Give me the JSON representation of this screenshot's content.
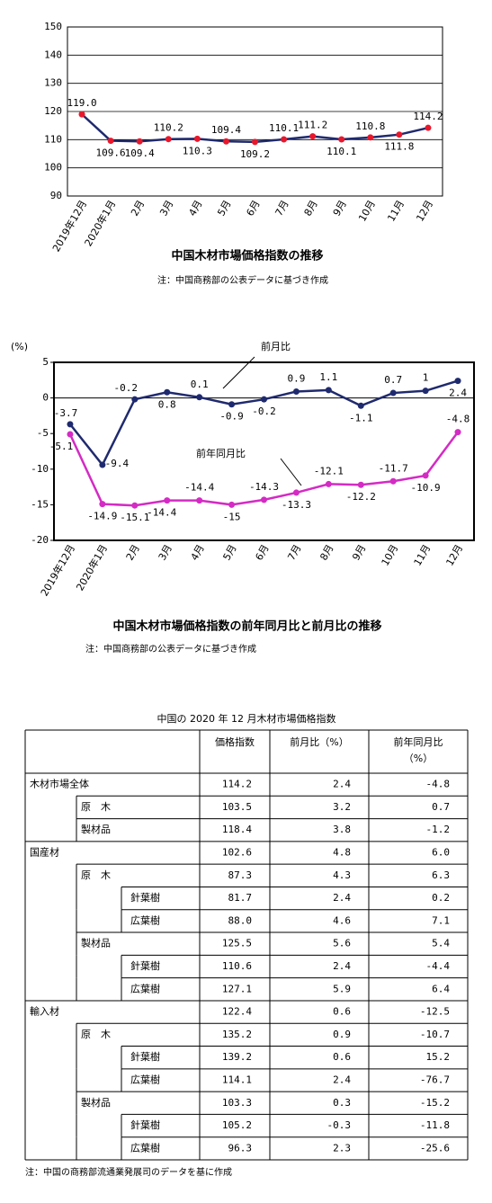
{
  "chart_data": [
    {
      "type": "line",
      "title": "中国木材市場価格指数の推移",
      "note": "注：中国商務部の公表データに基づき作成",
      "categories": [
        "2019年12月",
        "2020年1月",
        "2月",
        "3月",
        "4月",
        "5月",
        "6月",
        "7月",
        "8月",
        "9月",
        "10月",
        "11月",
        "12月"
      ],
      "series": [
        {
          "color": "#1f2a6e",
          "marker_color": "#e8182c",
          "values": [
            119.0,
            109.6,
            109.4,
            110.2,
            110.3,
            109.4,
            109.2,
            110.1,
            111.2,
            110.1,
            110.8,
            111.8,
            114.2
          ],
          "value_labels": [
            "119.0",
            "109.6",
            "109.4",
            "110.2",
            "110.3",
            "109.4",
            "109.2",
            "110.1",
            "111.2",
            "110.1",
            "110.8",
            "111.8",
            "114.2"
          ]
        }
      ],
      "ylim": [
        90,
        150
      ],
      "yticks": [
        90,
        100,
        110,
        120,
        130,
        140,
        150
      ],
      "grid": true
    },
    {
      "type": "line",
      "title": "中国木材市場価格指数の前年同月比と前月比の推移",
      "note": "注：中国商務部の公表データに基づき作成",
      "y_label": "(%)",
      "categories": [
        "2019年12月",
        "2020年1月",
        "2月",
        "3月",
        "4月",
        "5月",
        "6月",
        "7月",
        "8月",
        "9月",
        "10月",
        "11月",
        "12月"
      ],
      "series": [
        {
          "name": "前月比",
          "color": "#1f2a6e",
          "marker_color": "#1f2a6e",
          "values": [
            -3.7,
            -9.4,
            -0.2,
            0.8,
            0.1,
            -0.9,
            -0.2,
            0.9,
            1.1,
            -1.1,
            0.7,
            1,
            2.4
          ]
        },
        {
          "name": "前年同月比",
          "color": "#d42bc4",
          "marker_color": "#d42bc4",
          "values": [
            -5.1,
            -14.9,
            -15.1,
            -14.4,
            -14.4,
            -15,
            -14.3,
            -13.3,
            -12.1,
            -12.2,
            -11.7,
            -10.9,
            -4.8
          ]
        }
      ],
      "ylim": [
        -20,
        5
      ],
      "yticks": [
        -20,
        -15,
        -10,
        -5,
        0,
        5
      ],
      "grid": false
    }
  ],
  "table": {
    "title": "中国の 2020 年 12 月木材市場価格指数",
    "header": [
      [
        "価格指数"
      ],
      [
        "前月比（%）"
      ],
      [
        "前年同月比",
        "（%）"
      ]
    ],
    "rows": [
      {
        "level": 0,
        "label": "木材市場全体",
        "values": [
          "114.2",
          "2.4",
          "-4.8"
        ]
      },
      {
        "level": 1,
        "label": "原　木",
        "values": [
          "103.5",
          "3.2",
          "0.7"
        ]
      },
      {
        "level": 1,
        "label": "製材品",
        "values": [
          "118.4",
          "3.8",
          "-1.2"
        ]
      },
      {
        "level": 0,
        "label": "国産材",
        "values": [
          "102.6",
          "4.8",
          "6.0"
        ]
      },
      {
        "level": 1,
        "label": "原　木",
        "values": [
          "87.3",
          "4.3",
          "6.3"
        ]
      },
      {
        "level": 2,
        "label": "針葉樹",
        "values": [
          "81.7",
          "2.4",
          "0.2"
        ]
      },
      {
        "level": 2,
        "label": "広葉樹",
        "values": [
          "88.0",
          "4.6",
          "7.1"
        ]
      },
      {
        "level": 1,
        "label": "製材品",
        "values": [
          "125.5",
          "5.6",
          "5.4"
        ]
      },
      {
        "level": 2,
        "label": "針葉樹",
        "values": [
          "110.6",
          "2.4",
          "-4.4"
        ]
      },
      {
        "level": 2,
        "label": "広葉樹",
        "values": [
          "127.1",
          "5.9",
          "6.4"
        ]
      },
      {
        "level": 0,
        "label": "輸入材",
        "values": [
          "122.4",
          "0.6",
          "-12.5"
        ]
      },
      {
        "level": 1,
        "label": "原　木",
        "values": [
          "135.2",
          "0.9",
          "-10.7"
        ]
      },
      {
        "level": 2,
        "label": "針葉樹",
        "values": [
          "139.2",
          "0.6",
          "15.2"
        ]
      },
      {
        "level": 2,
        "label": "広葉樹",
        "values": [
          "114.1",
          "2.4",
          "-76.7"
        ]
      },
      {
        "level": 1,
        "label": "製材品",
        "values": [
          "103.3",
          "0.3",
          "-15.2"
        ]
      },
      {
        "level": 2,
        "label": "針葉樹",
        "values": [
          "105.2",
          "-0.3",
          "-11.8"
        ]
      },
      {
        "level": 2,
        "label": "広葉樹",
        "values": [
          "96.3",
          "2.3",
          "-25.6"
        ]
      }
    ],
    "note": "注：中国の商務部流通業発展司のデータを基に作成"
  }
}
